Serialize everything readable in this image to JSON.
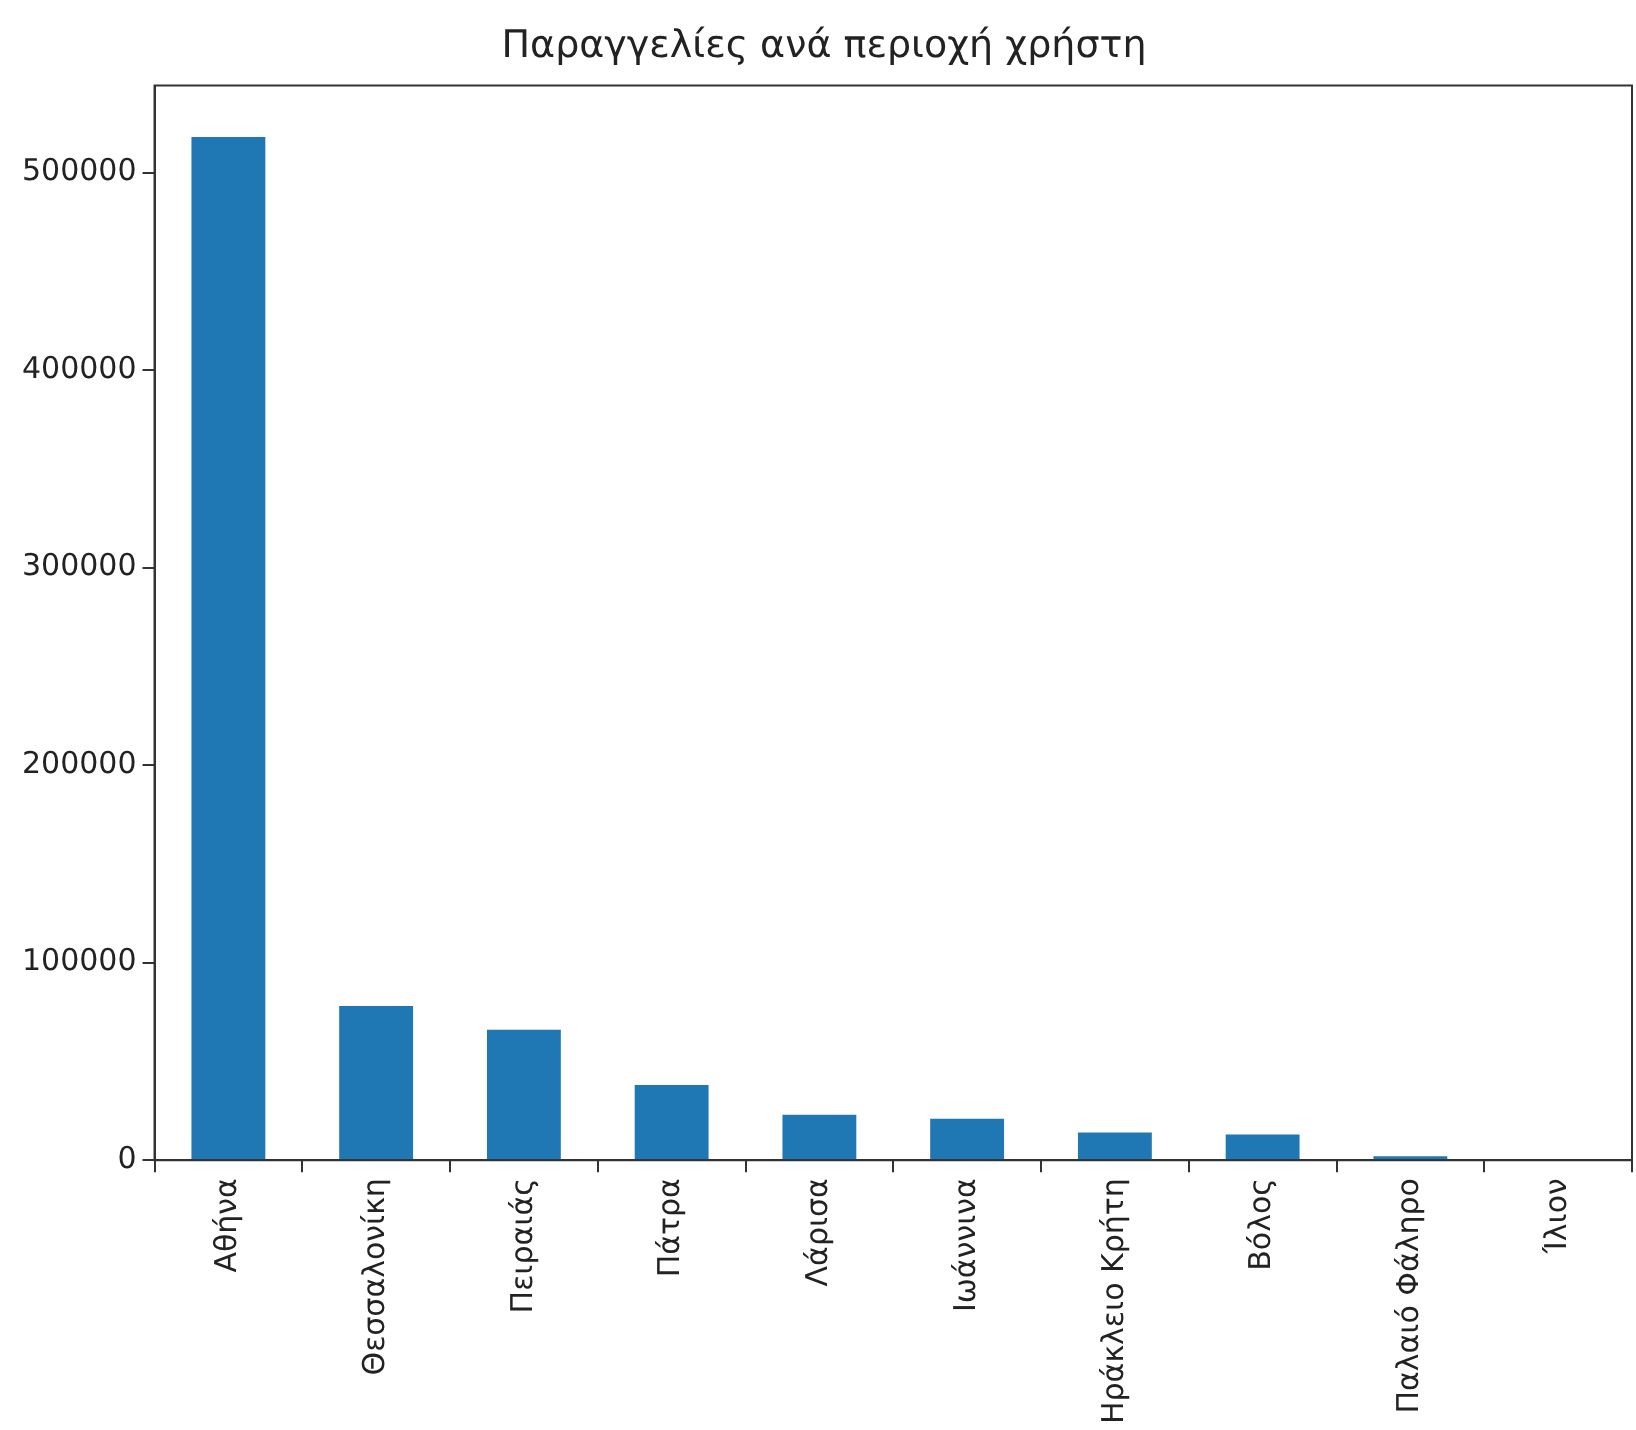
{
  "chart_data": {
    "type": "bar",
    "title": "Παραγγελίες ανά περιοχή χρήστη",
    "categories": [
      "Αθήνα",
      "Θεσσαλονίκη",
      "Πειραιάς",
      "Πάτρα",
      "Λάρισα",
      "Ιωάννινα",
      "Ηράκλειο Κρήτη",
      "Βόλος",
      "Παλαιό Φάληρο",
      "Ίλιον"
    ],
    "values": [
      518000,
      78000,
      66000,
      38000,
      23000,
      21000,
      14000,
      13000,
      2000,
      null
    ],
    "color": "#1f77b4",
    "ylim": [
      0,
      544000
    ],
    "yticks": [
      0,
      100000,
      200000,
      300000,
      400000,
      500000
    ],
    "grid": false,
    "legend": false
  }
}
